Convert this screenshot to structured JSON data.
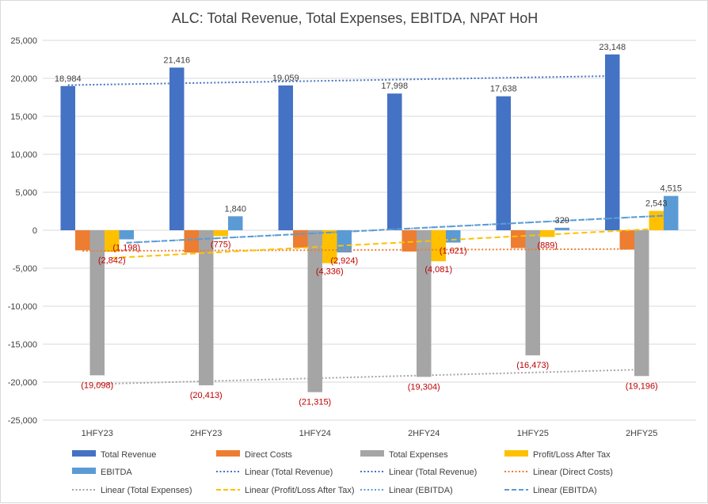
{
  "chart_data": {
    "type": "bar",
    "title": "ALC: Total Revenue, Total Expenses, EBITDA, NPAT HoH",
    "categories": [
      "1HFY23",
      "2HFY23",
      "1HFY24",
      "2HFY24",
      "1HFY25",
      "2HFY25"
    ],
    "ylim": [
      -25000,
      25000
    ],
    "yticks": [
      25000,
      20000,
      15000,
      10000,
      5000,
      0,
      -5000,
      -10000,
      -15000,
      -20000,
      -25000
    ],
    "ytick_labels": [
      "25,000",
      "20,000",
      "15,000",
      "10,000",
      "5,000",
      "0",
      "-5,000",
      "-10,000",
      "-15,000",
      "-20,000",
      "-25,000"
    ],
    "grid": true,
    "legend_position": "bottom",
    "series": [
      {
        "name": "Total Revenue",
        "color": "#4472c4",
        "values": [
          18984,
          21416,
          19059,
          17998,
          17638,
          23148
        ],
        "labels": [
          "18,984",
          "21,416",
          "19,059",
          "17,998",
          "17,638",
          "23,148"
        ]
      },
      {
        "name": "Direct Costs",
        "color": "#ed7d31",
        "values": [
          -2650,
          -2950,
          -2300,
          -2800,
          -2350,
          -2550
        ],
        "labels": [
          "",
          "",
          "",
          "",
          "",
          ""
        ]
      },
      {
        "name": "Total Expenses",
        "color": "#a5a5a5",
        "values": [
          -19098,
          -20413,
          -21315,
          -19304,
          -16473,
          -19196
        ],
        "labels": [
          "(19,098)",
          "(20,413)",
          "(21,315)",
          "(19,304)",
          "(16,473)",
          "(19,196)"
        ]
      },
      {
        "name": "Profit/Loss After Tax",
        "color": "#ffc000",
        "values": [
          -2842,
          -775,
          -4336,
          -4081,
          -889,
          2543
        ],
        "labels": [
          "(2,842)",
          "(775)",
          "(4,336)",
          "(4,081)",
          "(889)",
          "2,543"
        ]
      },
      {
        "name": "EBITDA",
        "color": "#5b9bd5",
        "values": [
          -1198,
          1840,
          -2924,
          -1621,
          329,
          4515
        ],
        "labels": [
          "(1,198)",
          "1,840",
          "(2,924)",
          "(1,621)",
          "329",
          "4,515"
        ]
      }
    ],
    "trendlines": [
      {
        "name": "Linear (Total Revenue)",
        "series": "Total Revenue",
        "color": "#4472c4",
        "style": "dotted"
      },
      {
        "name": "Linear (Total Revenue)",
        "series": "Total Revenue",
        "color": "#4472c4",
        "style": "dotted"
      },
      {
        "name": "Linear (Direct Costs)",
        "series": "Direct Costs",
        "color": "#ed7d31",
        "style": "dotted"
      },
      {
        "name": "Linear (Total Expenses)",
        "series": "Total Expenses",
        "color": "#a5a5a5",
        "style": "dotted"
      },
      {
        "name": "Linear (Profit/Loss After Tax)",
        "series": "Profit/Loss After Tax",
        "color": "#ffc000",
        "style": "dashed"
      },
      {
        "name": "Linear (EBITDA)",
        "series": "EBITDA",
        "color": "#5b9bd5",
        "style": "dotted"
      },
      {
        "name": "Linear (EBITDA)",
        "series": "EBITDA",
        "color": "#5b9bd5",
        "style": "dashed"
      }
    ],
    "legend_entries": [
      {
        "name": "Total Revenue",
        "color": "#4472c4",
        "kind": "bar"
      },
      {
        "name": "Direct Costs",
        "color": "#ed7d31",
        "kind": "bar"
      },
      {
        "name": "Total Expenses",
        "color": "#a5a5a5",
        "kind": "bar"
      },
      {
        "name": "Profit/Loss After Tax",
        "color": "#ffc000",
        "kind": "bar"
      },
      {
        "name": "EBITDA",
        "color": "#5b9bd5",
        "kind": "bar"
      },
      {
        "name": "Linear (Total Revenue)",
        "color": "#4472c4",
        "kind": "dotted"
      },
      {
        "name": "Linear (Total Revenue)",
        "color": "#4472c4",
        "kind": "dotted"
      },
      {
        "name": "Linear (Direct Costs)",
        "color": "#ed7d31",
        "kind": "dotted"
      },
      {
        "name": "Linear (Total Expenses)",
        "color": "#a5a5a5",
        "kind": "dotted"
      },
      {
        "name": "Linear (Profit/Loss After Tax)",
        "color": "#ffc000",
        "kind": "dashed"
      },
      {
        "name": "Linear (EBITDA)",
        "color": "#5b9bd5",
        "kind": "dotted"
      },
      {
        "name": "Linear (EBITDA)",
        "color": "#5b9bd5",
        "kind": "dashed"
      }
    ],
    "label_colors": {
      "positive": "#404040",
      "negative": "#c00000"
    }
  }
}
